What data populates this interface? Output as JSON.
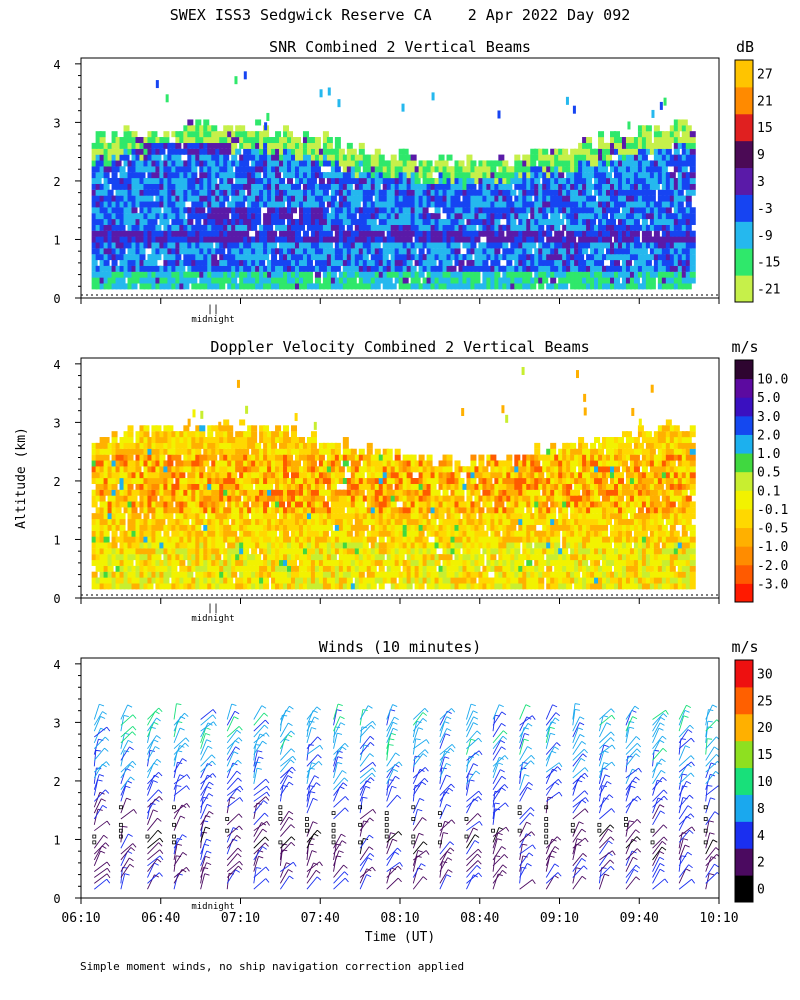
{
  "header": {
    "title": "SWEX ISS3 Sedgwick Reserve CA    2 Apr 2022 Day 092"
  },
  "shared": {
    "y_axis_label": "Altitude (km)",
    "x_axis_label": "Time (UT)",
    "midnight_label": "midnight",
    "midnight_marker": "||",
    "footnote": "Simple moment winds, no ship navigation correction applied"
  },
  "colors": {
    "snr_scale": [
      "#c6f04a",
      "#2fe86b",
      "#25b8ee",
      "#1644f2",
      "#5a1aa8",
      "#4b0a55",
      "#e02020",
      "#ff8a00",
      "#ffc400"
    ],
    "velocity_scale": [
      "#ff1a00",
      "#ff5a00",
      "#ff8c00",
      "#ffb000",
      "#ffd800",
      "#f2f200",
      "#c8ee30",
      "#40d840",
      "#1cb0ee",
      "#1448f0",
      "#3a10c0",
      "#5c0aa0",
      "#2e0530"
    ],
    "wind_scale": [
      "#000000",
      "#4b0a60",
      "#1a2ff0",
      "#1aa8ee",
      "#18e07a",
      "#8ee020",
      "#ffb000",
      "#ff6000",
      "#ee1010"
    ]
  },
  "chart_data": [
    {
      "type": "heatmap",
      "title": "SNR Combined 2 Vertical Beams",
      "unit": "dB",
      "ylabel": "Altitude (km)",
      "ylim": [
        0,
        4.1
      ],
      "y_ticks": [
        "0",
        "1",
        "2",
        "3",
        "4"
      ],
      "xlim": [
        "06:10",
        "10:10"
      ],
      "colorbar_labels": [
        "-21",
        "-15",
        "-9",
        "-3",
        "3",
        "9",
        "15",
        "21",
        "27"
      ],
      "grid": false,
      "features": [
        {
          "label": "echo top",
          "altitude_km": 2.8
        },
        {
          "label": "high-SNR layer",
          "start": "06:10",
          "end": "10:00",
          "altitude_km": 1.0
        },
        {
          "label": "high-SNR layer",
          "start": "06:50",
          "end": "07:40",
          "altitude_km": 1.35
        },
        {
          "label": "high-SNR layer",
          "start": "06:35",
          "end": "07:05",
          "altitude_km": 2.5
        }
      ]
    },
    {
      "type": "heatmap",
      "title": "Doppler Velocity Combined 2 Vertical Beams",
      "unit": "m/s",
      "ylabel": "Altitude (km)",
      "ylim": [
        0,
        4.1
      ],
      "y_ticks": [
        "0",
        "1",
        "2",
        "3",
        "4"
      ],
      "xlim": [
        "06:10",
        "10:10"
      ],
      "colorbar_labels": [
        "10.0",
        "5.0",
        "3.0",
        "2.0",
        "1.0",
        "0.5",
        "0.1",
        "-0.1",
        "-0.5",
        "-1.0",
        "-2.0",
        "-3.0"
      ],
      "grid": false,
      "features": [
        {
          "label": "echo top",
          "altitude_km": 2.8
        },
        {
          "label": "typical velocity",
          "range_m_s": [
            -1.0,
            0.1
          ]
        }
      ]
    },
    {
      "type": "wind barbs",
      "title": "Winds (10 minutes)",
      "unit": "m/s",
      "ylabel": "Altitude (km)",
      "xlabel": "Time (UT)",
      "ylim": [
        0,
        4.1
      ],
      "y_ticks": [
        "0",
        "1",
        "2",
        "3",
        "4"
      ],
      "x_ticks": [
        "06:10",
        "06:40",
        "07:10",
        "07:40",
        "08:10",
        "08:40",
        "09:10",
        "09:40",
        "10:10"
      ],
      "colorbar_labels": [
        "0",
        "2",
        "4",
        "8",
        "10",
        "15",
        "20",
        "25",
        "30"
      ],
      "grid": false,
      "profiles_times": [
        "06:15",
        "06:25",
        "06:35",
        "06:45",
        "06:55",
        "07:05",
        "07:15",
        "07:25",
        "07:35",
        "07:45",
        "07:55",
        "08:05",
        "08:15",
        "08:25",
        "08:35",
        "08:45",
        "08:55",
        "09:05",
        "09:15",
        "09:25",
        "09:35",
        "09:45",
        "09:55",
        "10:05"
      ],
      "speed_by_altitude": [
        {
          "altitude_km": 0.2,
          "speed_m_s": 4
        },
        {
          "altitude_km": 1.0,
          "speed_m_s": 3
        },
        {
          "altitude_km": 1.5,
          "speed_m_s": 5
        },
        {
          "altitude_km": 2.0,
          "speed_m_s": 8
        },
        {
          "altitude_km": 2.5,
          "speed_m_s": 9
        },
        {
          "altitude_km": 3.0,
          "speed_m_s": 9
        }
      ]
    }
  ]
}
